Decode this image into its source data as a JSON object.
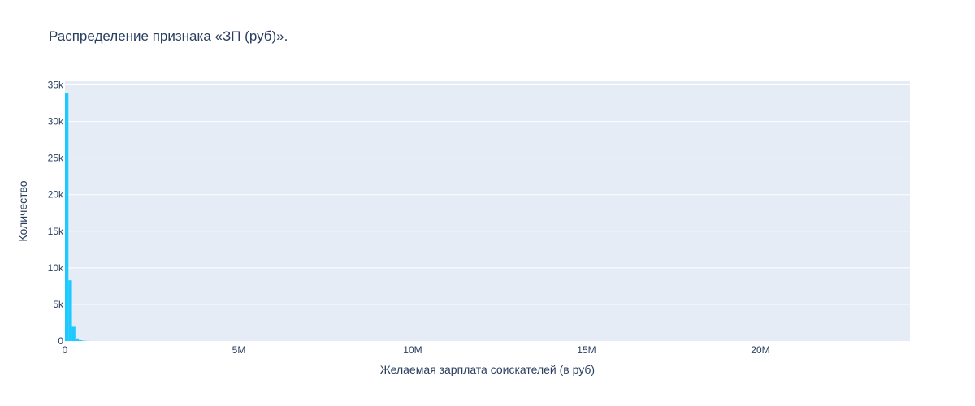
{
  "chart_data": {
    "type": "bar",
    "title": "Распределение признака «ЗП (руб)».",
    "xlabel": "Желаемая зарплата соискателей (в руб)",
    "ylabel": "Количество",
    "xlim": [
      0,
      24300000
    ],
    "ylim": [
      0,
      35500
    ],
    "x_ticks": [
      {
        "value": 0,
        "label": "0"
      },
      {
        "value": 5000000,
        "label": "5M"
      },
      {
        "value": 10000000,
        "label": "10M"
      },
      {
        "value": 15000000,
        "label": "15M"
      },
      {
        "value": 20000000,
        "label": "20M"
      }
    ],
    "y_ticks": [
      {
        "value": 0,
        "label": "0"
      },
      {
        "value": 5000,
        "label": "5k"
      },
      {
        "value": 10000,
        "label": "10k"
      },
      {
        "value": 15000,
        "label": "15k"
      },
      {
        "value": 20000,
        "label": "20k"
      },
      {
        "value": 25000,
        "label": "25k"
      },
      {
        "value": 30000,
        "label": "30k"
      },
      {
        "value": 35000,
        "label": "35k"
      }
    ],
    "bins": [
      {
        "x0": 0,
        "x1": 100000,
        "count": 33900
      },
      {
        "x0": 100000,
        "x1": 200000,
        "count": 8300
      },
      {
        "x0": 200000,
        "x1": 300000,
        "count": 1950
      },
      {
        "x0": 300000,
        "x1": 400000,
        "count": 350
      },
      {
        "x0": 400000,
        "x1": 500000,
        "count": 110
      },
      {
        "x0": 500000,
        "x1": 600000,
        "count": 40
      },
      {
        "x0": 600000,
        "x1": 700000,
        "count": 15
      }
    ],
    "grid": true,
    "colors": {
      "bar": "#1ccaff",
      "plot_bg": "#e5ecf6",
      "grid": "#ffffff",
      "text": "#2a3f5f"
    }
  }
}
